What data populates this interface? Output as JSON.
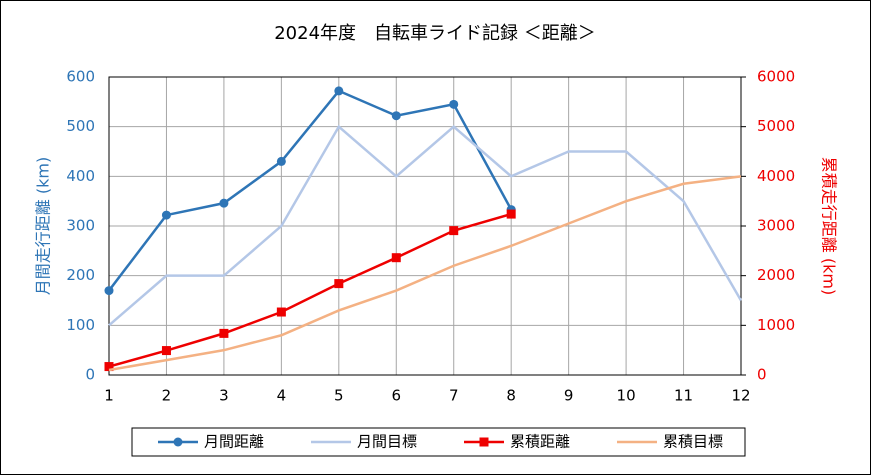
{
  "chart_data": {
    "type": "line",
    "title": "2024年度　自転車ライド記録 ＜距離＞",
    "y_label": "月間走行距離 (km)",
    "y2_label": "累積走行距離 (km)",
    "x": [
      1,
      2,
      3,
      4,
      5,
      6,
      7,
      8,
      9,
      10,
      11,
      12
    ],
    "xlim": [
      1,
      12
    ],
    "xticks": [
      1,
      2,
      3,
      4,
      5,
      6,
      7,
      8,
      9,
      10,
      11,
      12
    ],
    "ylim": [
      0,
      600
    ],
    "yticks": [
      0,
      100,
      200,
      300,
      400,
      500,
      600
    ],
    "y2lim": [
      0,
      6000
    ],
    "y2ticks": [
      0,
      1000,
      2000,
      3000,
      4000,
      5000,
      6000
    ],
    "grid": true,
    "legend": "bottom",
    "series": [
      {
        "name": "月間距離",
        "color": "#2e75b6",
        "marker": "circle",
        "values": [
          170,
          322,
          346,
          430,
          572,
          522,
          545,
          333,
          null,
          null,
          null,
          null
        ]
      },
      {
        "name": "月間目標",
        "color": "#b4c7e7",
        "values": [
          100,
          200,
          200,
          300,
          500,
          400,
          500,
          400,
          450,
          450,
          350,
          150
        ]
      },
      {
        "name": "累積距離",
        "color": "#ee0000",
        "marker": "square",
        "axis": "y2",
        "values": [
          170,
          492,
          838,
          1268,
          1840,
          2362,
          2907,
          3240,
          null,
          null,
          null,
          null
        ]
      },
      {
        "name": "累積目標",
        "color": "#f4b183",
        "axis": "y2",
        "values": [
          100,
          300,
          500,
          800,
          1300,
          1700,
          2200,
          2600,
          3050,
          3500,
          3850,
          4000
        ]
      }
    ]
  }
}
